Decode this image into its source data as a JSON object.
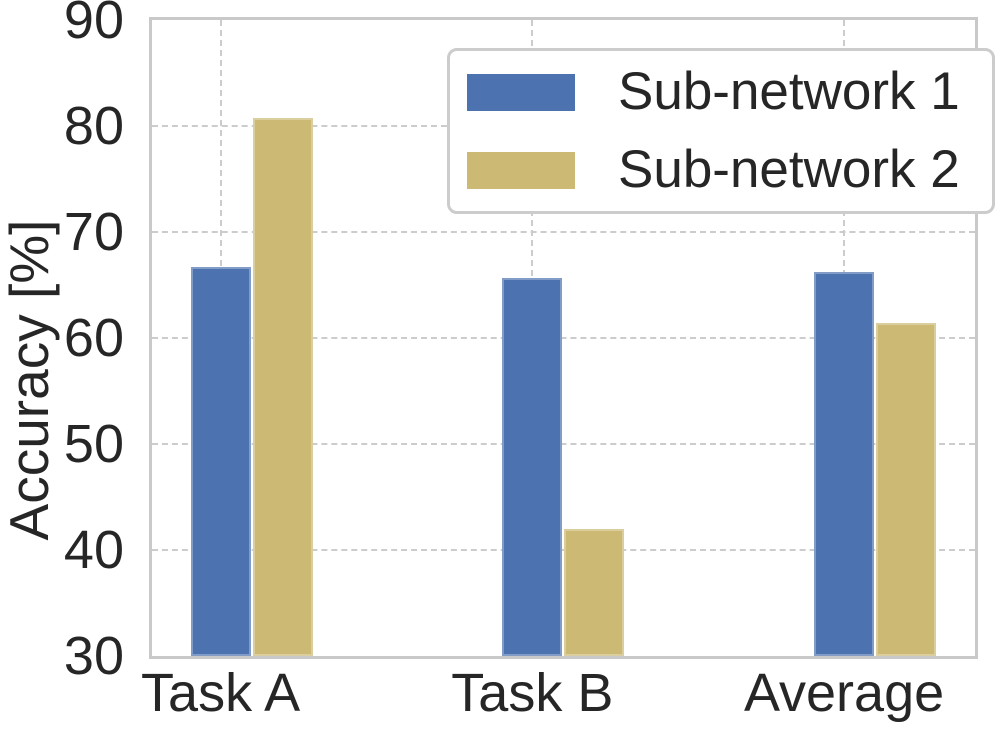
{
  "chart_data": {
    "type": "bar",
    "title": "",
    "categories": [
      "Task A",
      "Task B",
      "Average"
    ],
    "series": [
      {
        "name": "Sub-network 1",
        "color": "#4c72b0",
        "values": [
          66.7,
          65.7,
          66.2
        ]
      },
      {
        "name": "Sub-network 2",
        "color": "#ccb974",
        "values": [
          80.8,
          42.0,
          61.4
        ]
      }
    ],
    "xlabel": "",
    "ylabel": "Accuracy [%]",
    "ylim": [
      30,
      90
    ],
    "yticks": [
      30,
      40,
      50,
      60,
      70,
      80,
      90
    ],
    "xlim": [
      -0.22,
      2.42
    ],
    "grid": "dashed, horizontal and vertical, behind bars",
    "legend_position": "upper right",
    "colors": {
      "grid": "#cccccc",
      "spine": "#c9c9c9",
      "text": "#262626",
      "background": "#ffffff"
    }
  }
}
